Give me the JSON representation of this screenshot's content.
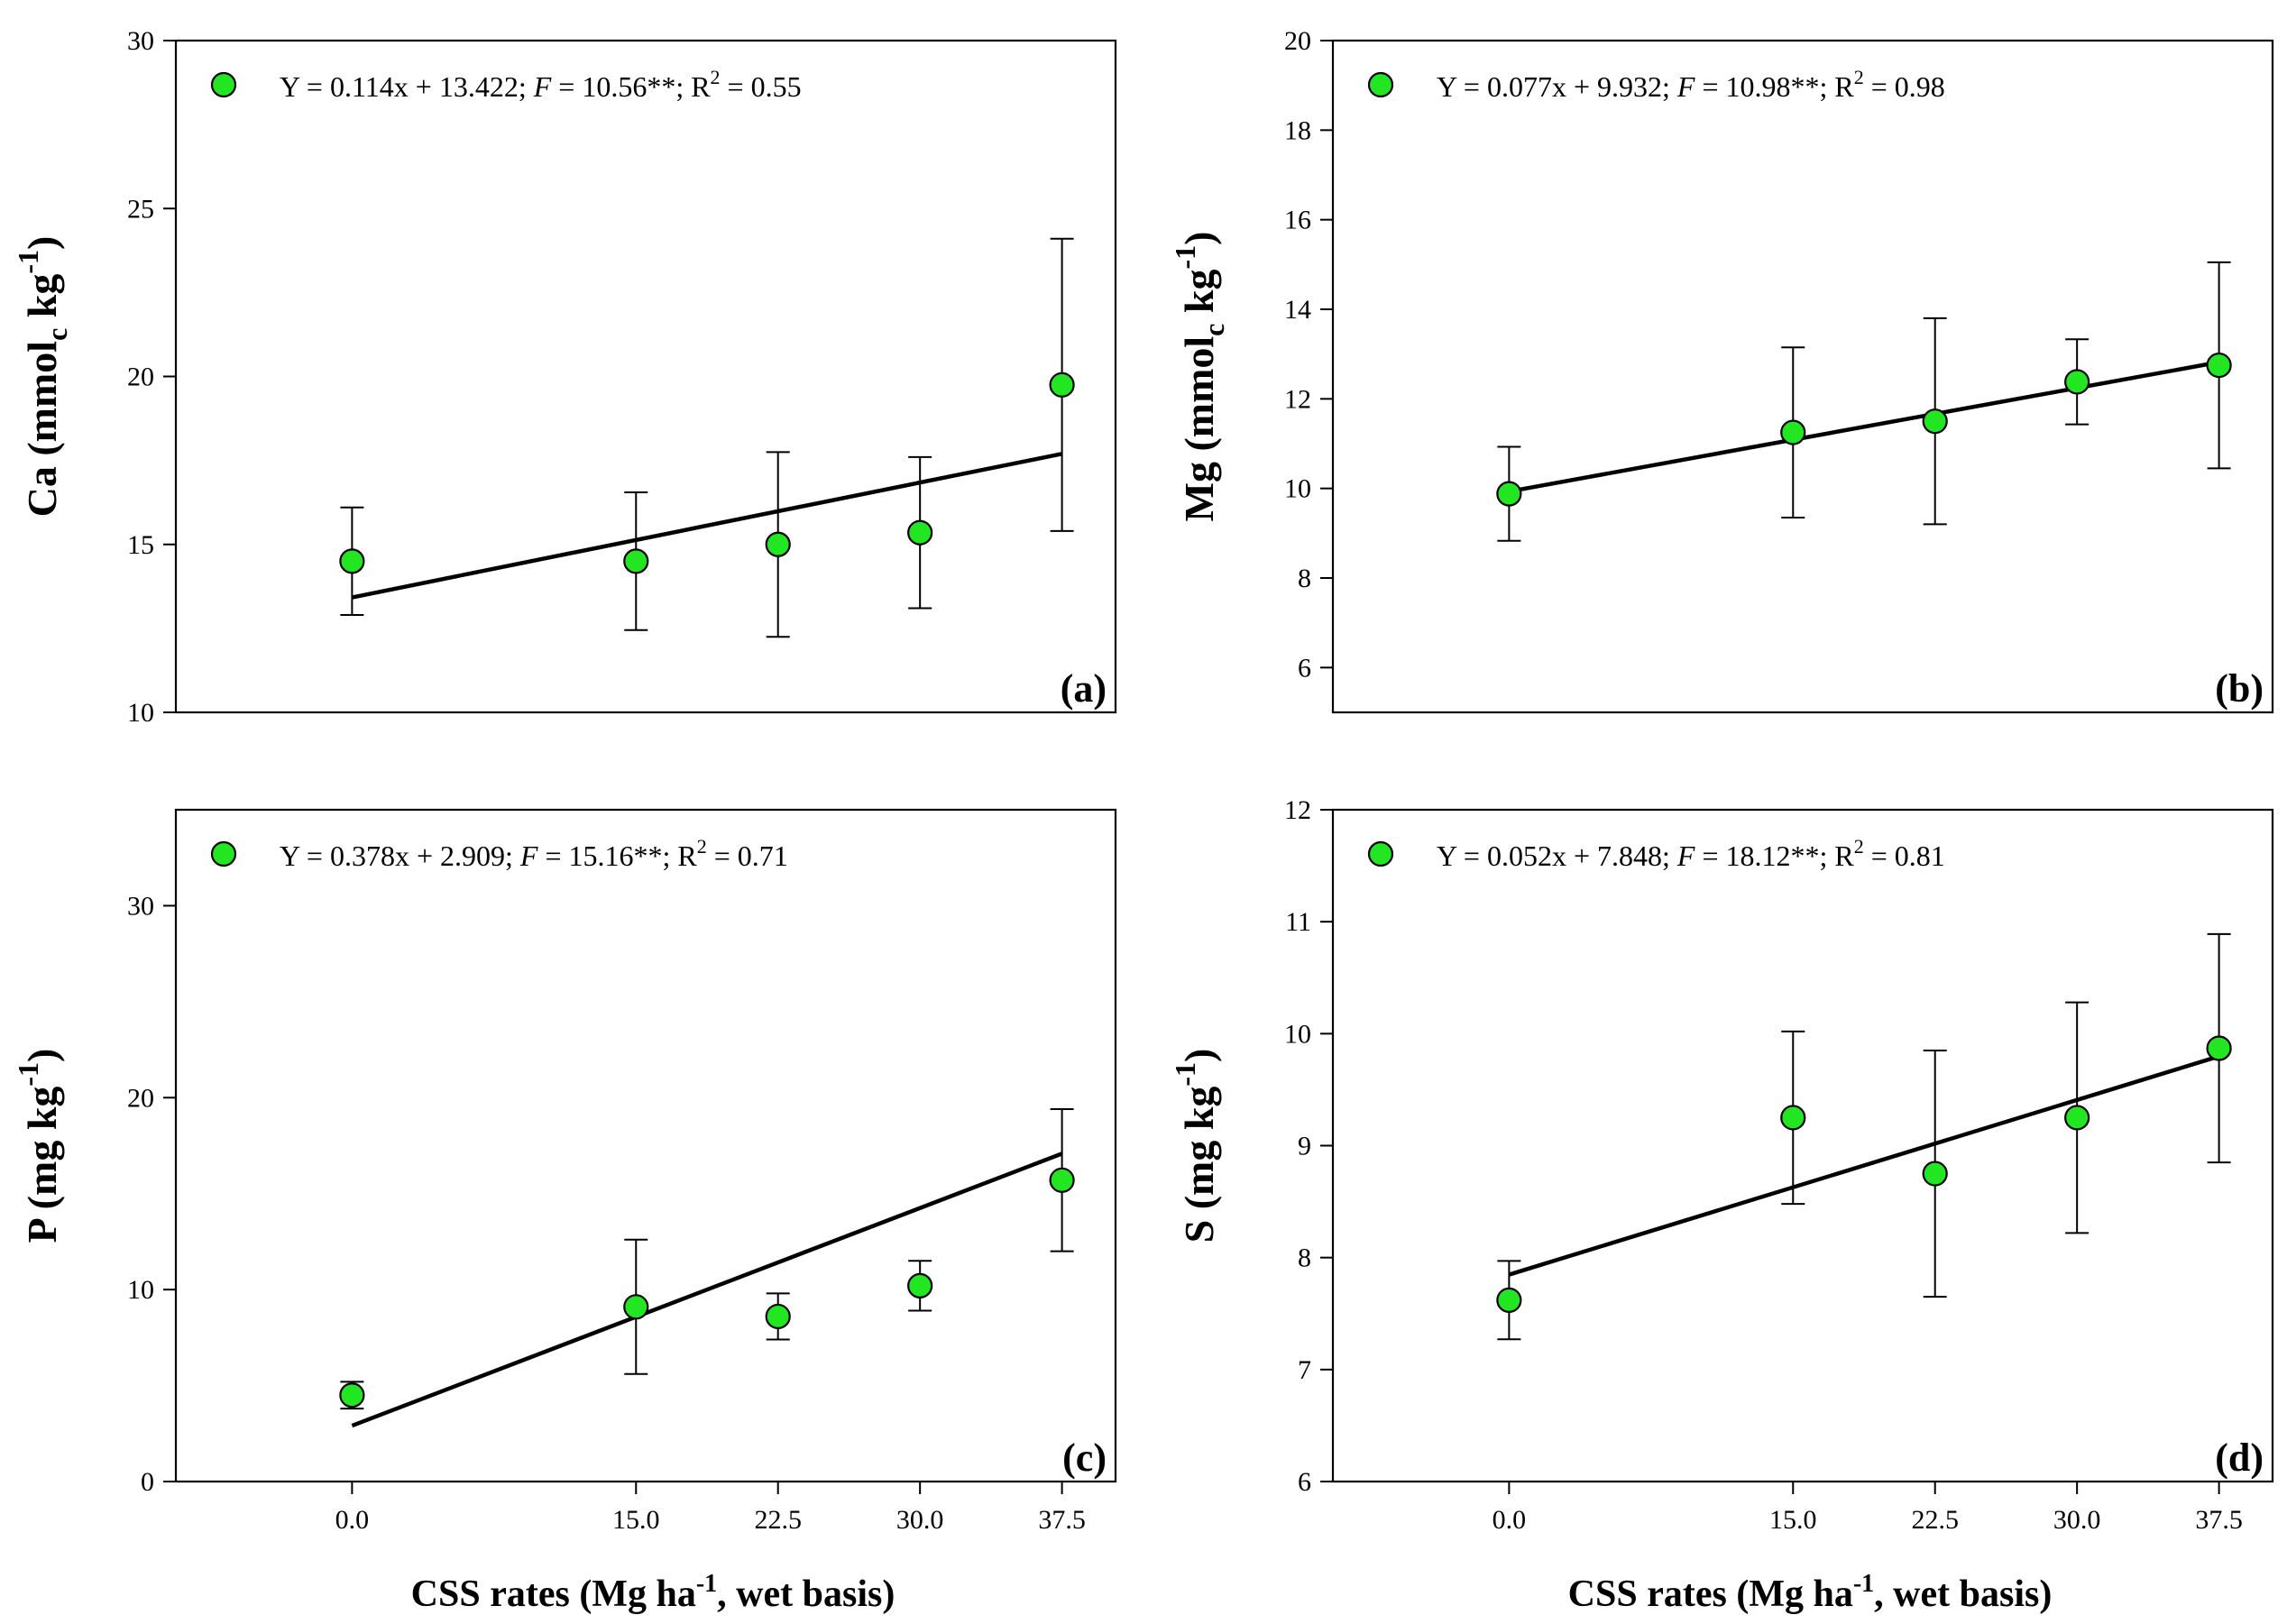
{
  "chart_data": [
    {
      "type": "scatter",
      "panel": "(a)",
      "ylabel_main": "Ca (mmol",
      "ylabel_sub": "c",
      "ylabel_mid": " kg",
      "ylabel_sup": "-1",
      "ylabel_end": ")",
      "ylim": [
        10,
        30
      ],
      "yticks": [
        10,
        15,
        20,
        25,
        30
      ],
      "xlabel": "",
      "xticks": [],
      "x": [
        0,
        15,
        22.5,
        30,
        37.5
      ],
      "values": [
        14.5,
        14.5,
        15.0,
        15.35,
        19.75
      ],
      "errors": [
        1.6,
        2.05,
        2.75,
        2.25,
        4.35
      ],
      "regression": {
        "slope": 0.114,
        "intercept": 13.422
      },
      "equation": {
        "text1": "Y = 0.114x + 13.422; ",
        "f": "F",
        "text2": " = 10.56**; R",
        "sup": "2",
        "text3": " = 0.55"
      }
    },
    {
      "type": "scatter",
      "panel": "(b)",
      "ylabel_main": "Mg (mmol",
      "ylabel_sub": "c",
      "ylabel_mid": " kg",
      "ylabel_sup": "-1",
      "ylabel_end": ")",
      "ylim": [
        5,
        20
      ],
      "yticks": [
        6,
        8,
        10,
        12,
        14,
        16,
        18,
        20
      ],
      "xlabel": "",
      "xticks": [],
      "x": [
        0,
        15,
        22.5,
        30,
        37.5
      ],
      "values": [
        9.88,
        11.25,
        11.5,
        12.38,
        12.75
      ],
      "errors": [
        1.05,
        1.9,
        2.3,
        0.95,
        2.3
      ],
      "regression": {
        "slope": 0.077,
        "intercept": 9.932
      },
      "equation": {
        "text1": "Y = 0.077x + 9.932; ",
        "f": "F",
        "text2": " = 10.98**; R",
        "sup": "2",
        "text3": " = 0.98"
      }
    },
    {
      "type": "scatter",
      "panel": "(c)",
      "ylabel_main": "P (mg kg",
      "ylabel_sub": "",
      "ylabel_mid": "",
      "ylabel_sup": "-1",
      "ylabel_end": ")",
      "ylim": [
        0,
        35
      ],
      "yticks": [
        0,
        10,
        20,
        30
      ],
      "xlabel": "CSS rates (Mg ha",
      "xlabel_sup": "-1",
      "xlabel_end": ", wet basis)",
      "xticks": [
        "0.0",
        "15.0",
        "22.5",
        "30.0",
        "37.5"
      ],
      "x": [
        0,
        15,
        22.5,
        30,
        37.5
      ],
      "values": [
        4.5,
        9.1,
        8.6,
        10.2,
        15.7
      ],
      "errors": [
        0.7,
        3.5,
        1.2,
        1.3,
        3.7
      ],
      "regression": {
        "slope": 0.378,
        "intercept": 2.909
      },
      "equation": {
        "text1": "Y = 0.378x + 2.909; ",
        "f": "F",
        "text2": " = 15.16**; R",
        "sup": "2",
        "text3": " = 0.71"
      }
    },
    {
      "type": "scatter",
      "panel": "(d)",
      "ylabel_main": "S (mg kg",
      "ylabel_sub": "",
      "ylabel_mid": "",
      "ylabel_sup": "-1",
      "ylabel_end": ")",
      "ylim": [
        6,
        12
      ],
      "yticks": [
        6,
        7,
        8,
        9,
        10,
        11,
        12
      ],
      "xlabel": "CSS rates (Mg ha",
      "xlabel_sup": "-1",
      "xlabel_end": ", wet basis)",
      "xticks": [
        "0.0",
        "15.0",
        "22.5",
        "30.0",
        "37.5"
      ],
      "x": [
        0,
        15,
        22.5,
        30,
        37.5
      ],
      "values": [
        7.62,
        9.25,
        8.75,
        9.25,
        9.87
      ],
      "errors": [
        0.35,
        0.77,
        1.1,
        1.03,
        1.02
      ],
      "regression": {
        "slope": 0.052,
        "intercept": 7.848
      },
      "equation": {
        "text1": "Y = 0.052x + 7.848; ",
        "f": "F",
        "text2": " = 18.12**; R",
        "sup": "2",
        "text3": " = 0.81"
      }
    }
  ],
  "colors": {
    "marker_fill": "#22e622",
    "marker_stroke": "#000000",
    "line": "#000000"
  }
}
